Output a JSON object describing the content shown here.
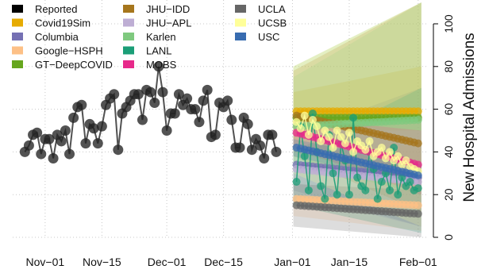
{
  "chart_data": {
    "type": "line",
    "ylabel": "New Hospital Admissions",
    "ylim": [
      0,
      110
    ],
    "yticks": [
      0,
      20,
      40,
      60,
      80,
      100
    ],
    "xlim": [
      "2020-10-24",
      "2021-02-03"
    ],
    "xticks": [
      {
        "date": "2020-11-01",
        "label": "Nov−01"
      },
      {
        "date": "2020-11-15",
        "label": "Nov−15"
      },
      {
        "date": "2020-12-01",
        "label": "Dec−01"
      },
      {
        "date": "2020-12-15",
        "label": "Dec−15"
      },
      {
        "date": "2021-01-01",
        "label": "Jan−01"
      },
      {
        "date": "2021-01-15",
        "label": "Jan−15"
      },
      {
        "date": "2021-02-01",
        "label": "Feb−01"
      }
    ],
    "grid": true,
    "legend_position": "top-left",
    "legend": [
      {
        "name": "Reported",
        "color": "#000000"
      },
      {
        "name": "Covid19Sim",
        "color": "#E6AB02"
      },
      {
        "name": "Columbia",
        "color": "#7570B3"
      },
      {
        "name": "Google−HSPH",
        "color": "#FDC086"
      },
      {
        "name": "GT−DeepCOVID",
        "color": "#66A61E"
      },
      {
        "name": "JHU−IDD",
        "color": "#A6761D"
      },
      {
        "name": "JHU−APL",
        "color": "#BEAED4"
      },
      {
        "name": "Karlen",
        "color": "#7FC97F"
      },
      {
        "name": "LANL",
        "color": "#1B9E77"
      },
      {
        "name": "MOBS",
        "color": "#E7298A"
      },
      {
        "name": "UCLA",
        "color": "#666666"
      },
      {
        "name": "UCSB",
        "color": "#FFFF99"
      },
      {
        "name": "USC",
        "color": "#386CB0"
      }
    ],
    "reported": [
      {
        "x": "2020-10-27",
        "y": 40
      },
      {
        "x": "2020-10-28",
        "y": 43
      },
      {
        "x": "2020-10-29",
        "y": 48
      },
      {
        "x": "2020-10-30",
        "y": 49
      },
      {
        "x": "2020-10-31",
        "y": 39
      },
      {
        "x": "2020-11-01",
        "y": 46
      },
      {
        "x": "2020-11-02",
        "y": 46
      },
      {
        "x": "2020-11-03",
        "y": 37
      },
      {
        "x": "2020-11-04",
        "y": 48
      },
      {
        "x": "2020-11-05",
        "y": 45
      },
      {
        "x": "2020-11-06",
        "y": 50
      },
      {
        "x": "2020-11-07",
        "y": 39
      },
      {
        "x": "2020-11-08",
        "y": 56
      },
      {
        "x": "2020-11-09",
        "y": 61
      },
      {
        "x": "2020-11-10",
        "y": 62
      },
      {
        "x": "2020-11-11",
        "y": 44
      },
      {
        "x": "2020-11-12",
        "y": 53
      },
      {
        "x": "2020-11-13",
        "y": 51
      },
      {
        "x": "2020-11-14",
        "y": 44
      },
      {
        "x": "2020-11-15",
        "y": 52
      },
      {
        "x": "2020-11-16",
        "y": 62
      },
      {
        "x": "2020-11-17",
        "y": 65
      },
      {
        "x": "2020-11-18",
        "y": 67
      },
      {
        "x": "2020-11-19",
        "y": 41
      },
      {
        "x": "2020-11-20",
        "y": 58
      },
      {
        "x": "2020-11-21",
        "y": 61
      },
      {
        "x": "2020-11-22",
        "y": 64
      },
      {
        "x": "2020-11-23",
        "y": 67
      },
      {
        "x": "2020-11-24",
        "y": 67
      },
      {
        "x": "2020-11-25",
        "y": 55
      },
      {
        "x": "2020-11-26",
        "y": 69
      },
      {
        "x": "2020-11-27",
        "y": 68
      },
      {
        "x": "2020-11-28",
        "y": 63
      },
      {
        "x": "2020-11-29",
        "y": 80
      },
      {
        "x": "2020-11-30",
        "y": 68
      },
      {
        "x": "2020-12-01",
        "y": 50
      },
      {
        "x": "2020-12-02",
        "y": 58
      },
      {
        "x": "2020-12-03",
        "y": 58
      },
      {
        "x": "2020-12-04",
        "y": 67
      },
      {
        "x": "2020-12-05",
        "y": 62
      },
      {
        "x": "2020-12-06",
        "y": 65
      },
      {
        "x": "2020-12-07",
        "y": 60
      },
      {
        "x": "2020-12-08",
        "y": 60
      },
      {
        "x": "2020-12-09",
        "y": 54
      },
      {
        "x": "2020-12-10",
        "y": 64
      },
      {
        "x": "2020-12-11",
        "y": 69
      },
      {
        "x": "2020-12-12",
        "y": 47
      },
      {
        "x": "2020-12-13",
        "y": 48
      },
      {
        "x": "2020-12-14",
        "y": 63
      },
      {
        "x": "2020-12-15",
        "y": 61
      },
      {
        "x": "2020-12-16",
        "y": 64
      },
      {
        "x": "2020-12-17",
        "y": 55
      },
      {
        "x": "2020-12-18",
        "y": 42
      },
      {
        "x": "2020-12-19",
        "y": 42
      },
      {
        "x": "2020-12-20",
        "y": 56
      },
      {
        "x": "2020-12-21",
        "y": 53
      },
      {
        "x": "2020-12-22",
        "y": 41
      },
      {
        "x": "2020-12-23",
        "y": 46
      },
      {
        "x": "2020-12-24",
        "y": 43
      },
      {
        "x": "2020-12-25",
        "y": 37
      },
      {
        "x": "2020-12-26",
        "y": 48
      },
      {
        "x": "2020-12-27",
        "y": 48
      },
      {
        "x": "2020-12-28",
        "y": 40
      }
    ],
    "forecasts": [
      {
        "name": "Covid19Sim",
        "start": 59,
        "end": 59,
        "lower": [
          50,
          50
        ],
        "upper": [
          68,
          80
        ]
      },
      {
        "name": "Columbia",
        "start": 34,
        "end": 28,
        "lower": [
          22,
          5
        ],
        "upper": [
          48,
          70
        ]
      },
      {
        "name": "Google−HSPH",
        "start": 18,
        "end": 15,
        "lower": [
          10,
          3
        ],
        "upper": [
          30,
          45
        ]
      },
      {
        "name": "GT−DeepCOVID",
        "start": 56,
        "end": 56,
        "lower": [
          40,
          25
        ],
        "upper": [
          80,
          110
        ]
      },
      {
        "name": "JHU−IDD",
        "start": 57,
        "end": 44,
        "lower": [
          38,
          12
        ],
        "upper": [
          78,
          110
        ]
      },
      {
        "name": "JHU−APL",
        "start": 32,
        "end": 26,
        "lower": [
          20,
          5
        ],
        "upper": [
          46,
          60
        ]
      },
      {
        "name": "Karlen",
        "start": 52,
        "end": 55,
        "lower": [
          35,
          20
        ],
        "upper": [
          75,
          110
        ]
      },
      {
        "name": "LANL",
        "start": 26,
        "end": 23,
        "lower": [
          15,
          2
        ],
        "upper": [
          40,
          70
        ]
      },
      {
        "name": "MOBS",
        "start": 49,
        "end": 34,
        "lower": [
          42,
          20
        ],
        "upper": [
          56,
          50
        ]
      },
      {
        "name": "UCLA",
        "start": 15,
        "end": 11,
        "lower": [
          5,
          0
        ],
        "upper": [
          25,
          22
        ]
      },
      {
        "name": "UCSB",
        "start": 54,
        "end": 31,
        "lower": [
          30,
          5
        ],
        "upper": [
          80,
          110
        ]
      },
      {
        "name": "USC",
        "start": 42,
        "end": 29,
        "lower": [
          38,
          24
        ],
        "upper": [
          46,
          34
        ]
      }
    ],
    "forecast_start": "2021-01-02",
    "forecast_end": "2021-02-01",
    "forecast_noisy_series": [
      {
        "name": "LANL",
        "y": [
          26,
          52,
          38,
          22,
          58,
          40,
          24,
          18,
          48,
          30,
          20,
          44,
          36,
          20,
          56,
          28,
          24,
          22,
          40,
          32,
          18,
          26,
          30,
          22,
          42,
          20,
          28,
          24,
          26,
          22,
          23
        ]
      },
      {
        "name": "UCSB",
        "y": [
          54,
          51,
          57,
          48,
          55,
          52,
          45,
          50,
          47,
          42,
          50,
          47,
          44,
          49,
          40,
          45,
          43,
          41,
          45,
          38,
          40,
          42,
          37,
          40,
          36,
          38,
          34,
          36,
          33,
          32,
          31
        ]
      }
    ]
  }
}
